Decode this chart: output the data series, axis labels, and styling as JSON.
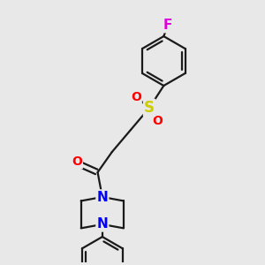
{
  "bg_color": "#e8e8e8",
  "bond_color": "#1a1a1a",
  "bond_width": 1.6,
  "atom_colors": {
    "O": "#ff0000",
    "S": "#cccc00",
    "N": "#0000ff",
    "F": "#dd00dd",
    "C": "#1a1a1a"
  },
  "font_size": 10,
  "figsize": [
    3.0,
    3.0
  ],
  "dpi": 100,
  "xlim": [
    0,
    10
  ],
  "ylim": [
    0,
    10
  ]
}
